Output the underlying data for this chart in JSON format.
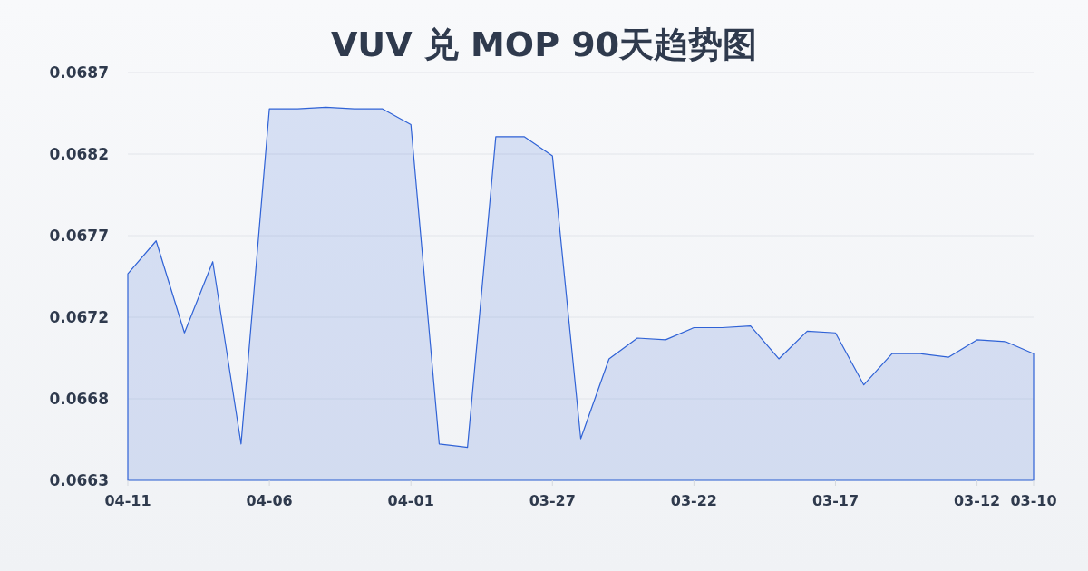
{
  "chart_data": {
    "type": "area",
    "title": "VUV 兑 MOP 90天趋势图",
    "x": [
      "--04-11",
      "--04-10",
      "--04-09",
      "--04-08",
      "--04-07",
      "--04-06",
      "--04-05",
      "--04-04",
      "--04-03",
      "--04-02",
      "--04-01",
      "--03-31",
      "--03-30",
      "--03-29",
      "--03-28",
      "--03-27",
      "--03-26",
      "--03-25",
      "--03-24",
      "--03-23",
      "--03-22",
      "--03-21",
      "--03-20",
      "--03-19",
      "--03-18",
      "--03-17",
      "--03-16",
      "--03-15",
      "--03-14",
      "--03-13",
      "--03-12",
      "--03-11",
      "--03-10"
    ],
    "values": [
      0.06749,
      0.06768,
      0.06715,
      0.06756,
      0.06651,
      0.06844,
      0.06844,
      0.06845,
      0.06844,
      0.06844,
      0.06835,
      0.06651,
      0.06649,
      0.06828,
      0.06828,
      0.06817,
      0.06654,
      0.067,
      0.06712,
      0.06711,
      0.06718,
      0.06718,
      0.06719,
      0.067,
      0.06716,
      0.06715,
      0.06685,
      0.06703,
      0.06703,
      0.06701,
      0.06711,
      0.0671,
      0.06703
    ],
    "color": "#2f62d6",
    "xlim": [
      "--04-11",
      "--03-10"
    ],
    "xticks": [
      {
        "value": "--04-11",
        "label": "04-11"
      },
      {
        "value": "--04-06",
        "label": "04-06"
      },
      {
        "value": "--04-01",
        "label": "04-01"
      },
      {
        "value": "--03-27",
        "label": "03-27"
      },
      {
        "value": "--03-22",
        "label": "03-22"
      },
      {
        "value": "--03-17",
        "label": "03-17"
      },
      {
        "value": "--03-12",
        "label": "03-12"
      },
      {
        "value": "--03-10",
        "label": "03-10"
      }
    ],
    "ylim": [
      0.0663,
      0.06865
    ],
    "yticks": [
      0.0663,
      {
        "value": 0.06677,
        "label": "0.0668"
      },
      {
        "value": 0.06724,
        "label": "0.0672"
      },
      {
        "value": 0.06771,
        "label": "0.0677"
      },
      {
        "value": 0.06818,
        "label": "0.0682"
      },
      {
        "value": 0.06865,
        "label": "0.0687"
      }
    ],
    "grid": "y"
  }
}
